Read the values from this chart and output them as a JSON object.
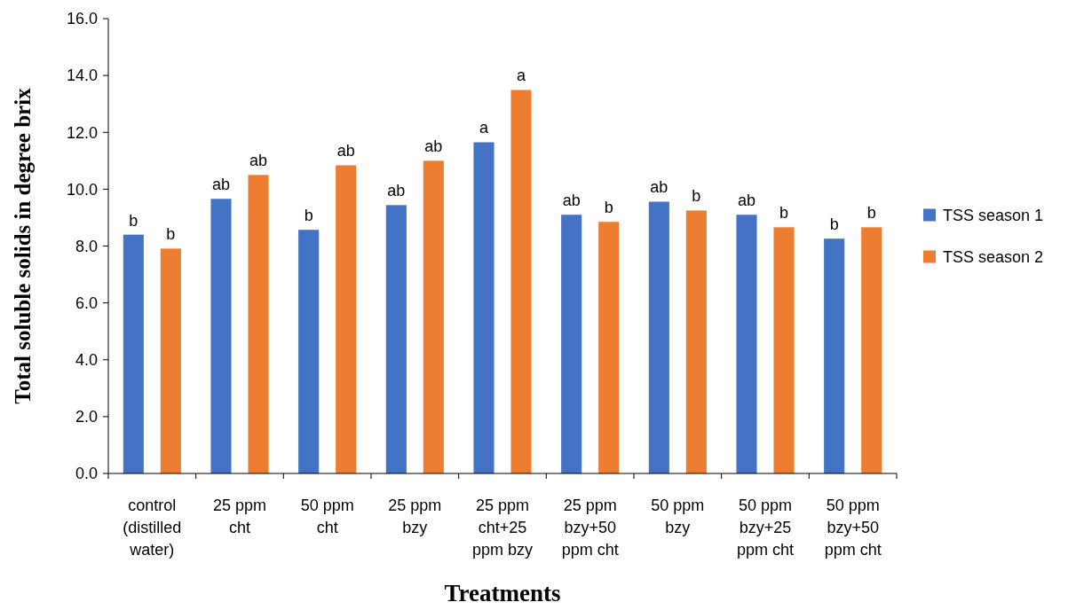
{
  "chart_data": {
    "type": "bar",
    "xlabel": "Treatments",
    "ylabel": "Total soluble solids in degree brix",
    "categories": [
      "control (distilled water)",
      "25 ppm cht",
      "50 ppm cht",
      "25 ppm bzy",
      "25 ppm cht+25 ppm bzy",
      "25 ppm bzy+50 ppm cht",
      "50 ppm bzy",
      "50 ppm bzy+25 ppm cht",
      "50 ppm bzy+50 ppm cht"
    ],
    "series": [
      {
        "name": "TSS season 1",
        "color": "#4472c4",
        "values": [
          8.4,
          9.66,
          8.57,
          9.44,
          11.65,
          9.1,
          9.56,
          9.1,
          8.26
        ],
        "value_labels": [
          "b",
          "ab",
          "b",
          "ab",
          "a",
          "ab",
          "ab",
          "ab",
          "b"
        ]
      },
      {
        "name": "TSS season 2",
        "color": "#ed7d31",
        "values": [
          7.91,
          10.5,
          10.84,
          11.0,
          13.49,
          8.85,
          9.25,
          8.66,
          8.66
        ],
        "value_labels": [
          "b",
          "ab",
          "ab",
          "ab",
          "a",
          "b",
          "b",
          "b",
          "b"
        ]
      }
    ],
    "ylim": [
      0,
      16
    ],
    "yticks": [
      {
        "value": 0,
        "label": "0.0"
      },
      {
        "value": 2,
        "label": "2.0"
      },
      {
        "value": 4,
        "label": "4.0"
      },
      {
        "value": 6,
        "label": "6.0"
      },
      {
        "value": 8,
        "label": "8.0"
      },
      {
        "value": 10,
        "label": "10.0"
      },
      {
        "value": 12,
        "label": "12.0"
      },
      {
        "value": 14,
        "label": "14.0"
      },
      {
        "value": 16,
        "label": "16.0"
      }
    ],
    "grid": false,
    "legend": "right"
  }
}
